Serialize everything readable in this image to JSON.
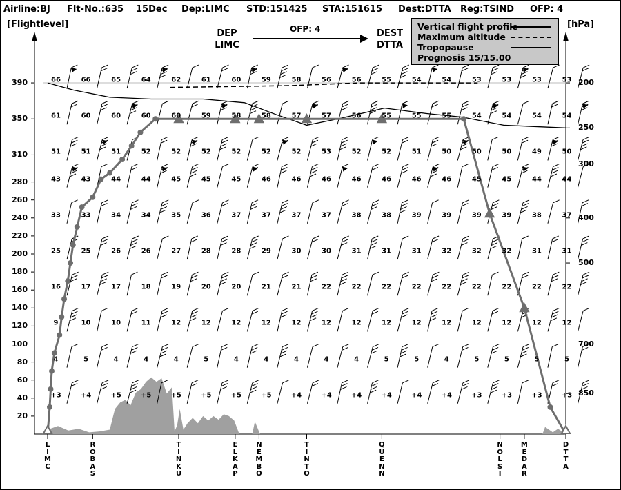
{
  "header": {
    "airline": "Airline:BJ",
    "flight_no": "Flt-No.:635",
    "date": "15Dec",
    "dep": "Dep:LIMC",
    "std": "STD:151425",
    "sta": "STA:151615",
    "dest": "Dest:DTTA",
    "reg": "Reg:TSIND",
    "ofp": "OFP: 4"
  },
  "route_banner": {
    "dep_label": "DEP",
    "dep_code": "LIMC",
    "ofp": "OFP: 4",
    "dest_label": "DEST",
    "dest_code": "DTTA"
  },
  "legend": {
    "vertical_profile": "Vertical flight profile",
    "max_altitude": "Maximum altitude",
    "tropopause": "Tropopause",
    "prognosis": "Prognosis  15/15.00",
    "colors": {
      "profile": "#6e6e6e",
      "terrain": "#a0a0a0",
      "background": "#c8c8c8"
    }
  },
  "chart_data": {
    "type": "line",
    "ylabel": "[Flightlevel]",
    "y2label": "[hPa]",
    "flightlevel_ticks": [
      "20",
      "40",
      "60",
      "80",
      "100",
      "120",
      "140",
      "160",
      "180",
      "200",
      "220",
      "240",
      "260",
      "280",
      "310",
      "350",
      "390"
    ],
    "pressure_ticks": [
      {
        "hpa": "200",
        "fl": 390
      },
      {
        "hpa": "250",
        "fl": 340
      },
      {
        "hpa": "300",
        "fl": 300
      },
      {
        "hpa": "400",
        "fl": 240
      },
      {
        "hpa": "500",
        "fl": 190
      },
      {
        "hpa": "700",
        "fl": 100
      },
      {
        "hpa": "850",
        "fl": 45
      }
    ],
    "waypoints": [
      {
        "name": "LIMC",
        "pos": 0.0
      },
      {
        "name": "ROBAS",
        "pos": 0.087
      },
      {
        "name": "TINKU",
        "pos": 0.253
      },
      {
        "name": "ELKAP",
        "pos": 0.362
      },
      {
        "name": "NEMBO",
        "pos": 0.408
      },
      {
        "name": "TINTO",
        "pos": 0.5
      },
      {
        "name": "QUENN",
        "pos": 0.645
      },
      {
        "name": "NOLSI",
        "pos": 0.873
      },
      {
        "name": "MEDAR",
        "pos": 0.92
      },
      {
        "name": "DTTA",
        "pos": 1.0
      }
    ],
    "vertical_profile": [
      {
        "pos": 0.0,
        "fl": 0
      },
      {
        "pos": 0.004,
        "fl": 30
      },
      {
        "pos": 0.006,
        "fl": 50
      },
      {
        "pos": 0.008,
        "fl": 70
      },
      {
        "pos": 0.013,
        "fl": 90
      },
      {
        "pos": 0.023,
        "fl": 110
      },
      {
        "pos": 0.027,
        "fl": 130
      },
      {
        "pos": 0.032,
        "fl": 150
      },
      {
        "pos": 0.039,
        "fl": 170
      },
      {
        "pos": 0.044,
        "fl": 190
      },
      {
        "pos": 0.049,
        "fl": 210
      },
      {
        "pos": 0.057,
        "fl": 230
      },
      {
        "pos": 0.066,
        "fl": 252
      },
      {
        "pos": 0.087,
        "fl": 263
      },
      {
        "pos": 0.103,
        "fl": 283
      },
      {
        "pos": 0.12,
        "fl": 290
      },
      {
        "pos": 0.144,
        "fl": 305
      },
      {
        "pos": 0.162,
        "fl": 320
      },
      {
        "pos": 0.179,
        "fl": 335
      },
      {
        "pos": 0.208,
        "fl": 350
      },
      {
        "pos": 0.253,
        "fl": 350
      },
      {
        "pos": 0.362,
        "fl": 350
      },
      {
        "pos": 0.408,
        "fl": 350
      },
      {
        "pos": 0.5,
        "fl": 350
      },
      {
        "pos": 0.645,
        "fl": 350
      },
      {
        "pos": 0.803,
        "fl": 350
      },
      {
        "pos": 0.853,
        "fl": 245
      },
      {
        "pos": 0.92,
        "fl": 140
      },
      {
        "pos": 0.97,
        "fl": 30
      },
      {
        "pos": 1.0,
        "fl": 0
      }
    ],
    "profile_triangles": [
      0.0,
      0.253,
      0.362,
      0.408,
      0.5,
      0.645,
      0.853,
      0.92,
      1.0
    ],
    "max_altitude": [
      {
        "pos": 0.237,
        "fl": 385
      },
      {
        "pos": 0.47,
        "fl": 387
      },
      {
        "pos": 0.6,
        "fl": 390
      },
      {
        "pos": 0.83,
        "fl": 390
      }
    ],
    "tropopause": [
      {
        "pos": 0.0,
        "fl": 390
      },
      {
        "pos": 0.05,
        "fl": 382
      },
      {
        "pos": 0.12,
        "fl": 374
      },
      {
        "pos": 0.2,
        "fl": 372
      },
      {
        "pos": 0.3,
        "fl": 372
      },
      {
        "pos": 0.38,
        "fl": 368
      },
      {
        "pos": 0.44,
        "fl": 355
      },
      {
        "pos": 0.5,
        "fl": 343
      },
      {
        "pos": 0.56,
        "fl": 350
      },
      {
        "pos": 0.65,
        "fl": 362
      },
      {
        "pos": 0.73,
        "fl": 356
      },
      {
        "pos": 0.8,
        "fl": 352
      },
      {
        "pos": 0.88,
        "fl": 343
      },
      {
        "pos": 1.0,
        "fl": 340
      }
    ],
    "terrain": [
      [
        0.0,
        5
      ],
      [
        0.02,
        9
      ],
      [
        0.04,
        4
      ],
      [
        0.06,
        6
      ],
      [
        0.08,
        2
      ],
      [
        0.1,
        3
      ],
      [
        0.12,
        5
      ],
      [
        0.13,
        28
      ],
      [
        0.14,
        35
      ],
      [
        0.15,
        38
      ],
      [
        0.16,
        32
      ],
      [
        0.17,
        46
      ],
      [
        0.18,
        50
      ],
      [
        0.19,
        58
      ],
      [
        0.2,
        63
      ],
      [
        0.21,
        58
      ],
      [
        0.22,
        62
      ],
      [
        0.23,
        45
      ],
      [
        0.24,
        52
      ],
      [
        0.245,
        3
      ],
      [
        0.25,
        10
      ],
      [
        0.255,
        28
      ],
      [
        0.262,
        5
      ],
      [
        0.27,
        12
      ],
      [
        0.28,
        18
      ],
      [
        0.29,
        12
      ],
      [
        0.3,
        20
      ],
      [
        0.31,
        15
      ],
      [
        0.32,
        20
      ],
      [
        0.33,
        16
      ],
      [
        0.34,
        22
      ],
      [
        0.35,
        20
      ],
      [
        0.36,
        15
      ],
      [
        0.37,
        0
      ],
      [
        0.395,
        0
      ],
      [
        0.4,
        14
      ],
      [
        0.41,
        0
      ],
      [
        0.955,
        0
      ],
      [
        0.96,
        8
      ],
      [
        0.975,
        2
      ],
      [
        0.985,
        6
      ],
      [
        1.0,
        0
      ]
    ],
    "wind_columns": [
      0.0,
      0.058,
      0.116,
      0.174,
      0.232,
      0.29,
      0.348,
      0.406,
      0.464,
      0.522,
      0.58,
      0.638,
      0.696,
      0.754,
      0.812,
      0.87,
      0.928,
      0.986
    ],
    "wind_rows": [
      {
        "fl": 390,
        "temps": [
          "66",
          "66",
          "65",
          "64",
          "62",
          "61",
          "60",
          "59",
          "58",
          "56",
          "56",
          "55",
          "54",
          "54",
          "53",
          "53",
          "53",
          "53"
        ]
      },
      {
        "fl": 350,
        "temps": [
          "61",
          "60",
          "60",
          "60",
          "60",
          "59",
          "58",
          "58",
          "57",
          "57",
          "56",
          "55",
          "55",
          "55",
          "54",
          "54",
          "54",
          "54"
        ]
      },
      {
        "fl": 310,
        "temps": [
          "51",
          "51",
          "51",
          "52",
          "52",
          "52",
          "52",
          "52",
          "52",
          "53",
          "52",
          "52",
          "51",
          "50",
          "50",
          "50",
          "49",
          "50"
        ]
      },
      {
        "fl": 280,
        "temps": [
          "43",
          "43",
          "44",
          "44",
          "45",
          "45",
          "45",
          "46",
          "46",
          "46",
          "46",
          "46",
          "46",
          "46",
          "45",
          "45",
          "44",
          "44"
        ]
      },
      {
        "fl": 240,
        "temps": [
          "33",
          "33",
          "34",
          "34",
          "35",
          "36",
          "37",
          "37",
          "37",
          "37",
          "38",
          "38",
          "39",
          "39",
          "39",
          "39",
          "38",
          "37"
        ]
      },
      {
        "fl": 200,
        "temps": [
          "25",
          "25",
          "26",
          "26",
          "27",
          "28",
          "28",
          "29",
          "30",
          "30",
          "31",
          "31",
          "31",
          "32",
          "32",
          "32",
          "31",
          "31"
        ]
      },
      {
        "fl": 160,
        "temps": [
          "16",
          "17",
          "17",
          "18",
          "19",
          "20",
          "20",
          "21",
          "21",
          "22",
          "22",
          "22",
          "22",
          "22",
          "22",
          "22",
          "22",
          "22"
        ]
      },
      {
        "fl": 120,
        "temps": [
          "9",
          "10",
          "10",
          "11",
          "12",
          "12",
          "12",
          "12",
          "12",
          "12",
          "12",
          "12",
          "12",
          "12",
          "12",
          "12",
          "12",
          "12"
        ]
      },
      {
        "fl": 80,
        "temps": [
          "4",
          "5",
          "4",
          "4",
          "4",
          "5",
          "4",
          "4",
          "4",
          "4",
          "4",
          "5",
          "5",
          "4",
          "5",
          "5",
          "5",
          "5"
        ]
      },
      {
        "fl": 40,
        "temps": [
          "+3",
          "+4",
          "+5",
          "+5",
          "+5",
          "+5",
          "+5",
          "+5",
          "+4",
          "+4",
          "+4",
          "+4",
          "+4",
          "+4",
          "+3",
          "+3",
          "+3",
          "+3"
        ]
      }
    ]
  }
}
